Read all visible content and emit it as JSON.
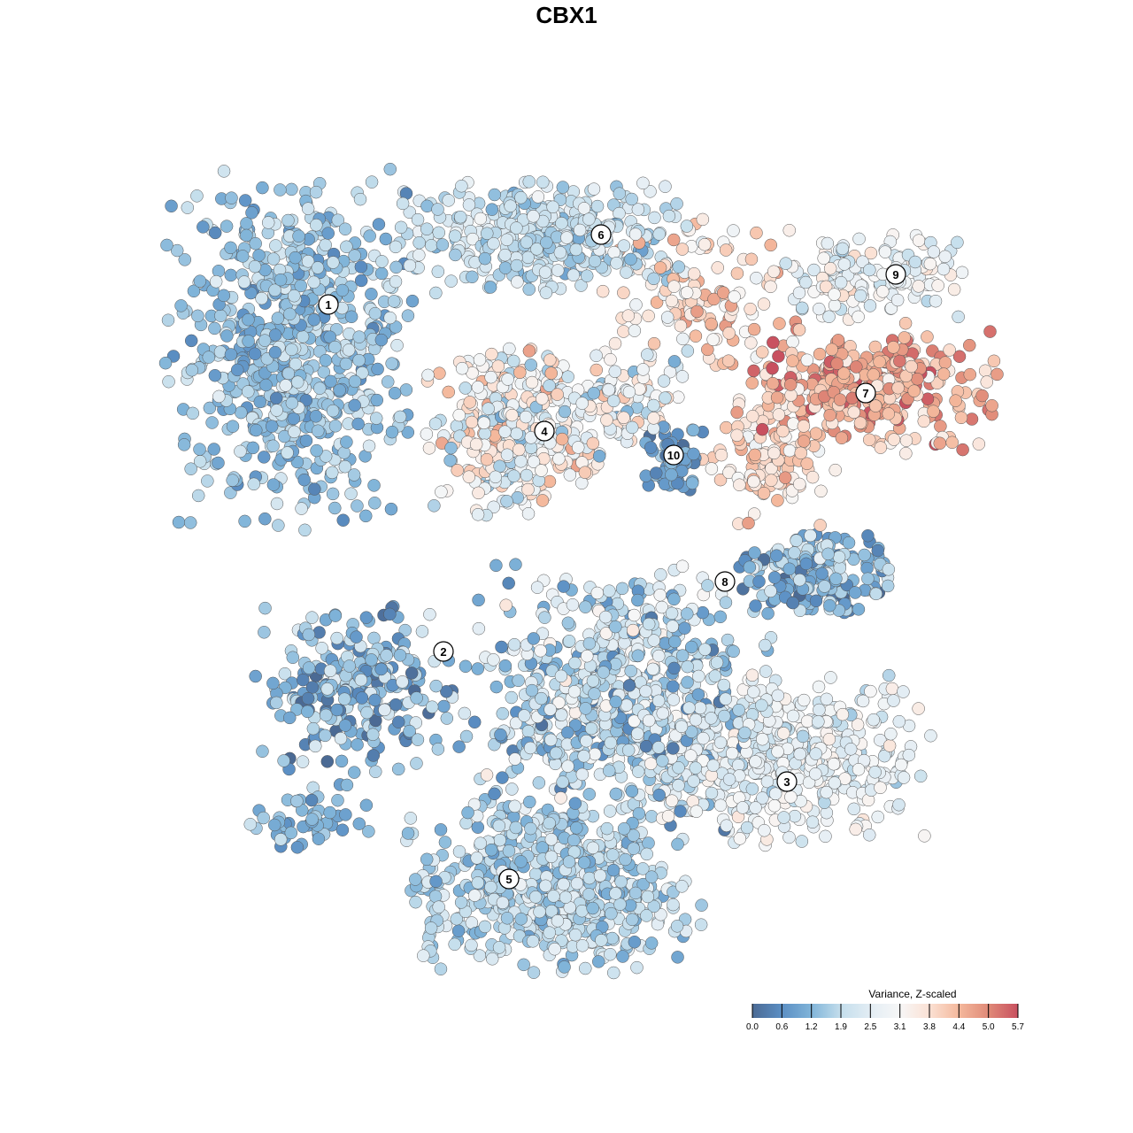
{
  "chart_data": {
    "type": "scatter",
    "title": "CBX1",
    "xlabel": "",
    "ylabel": "",
    "xlim": [
      -64,
      64
    ],
    "ylim": [
      -64,
      64
    ],
    "grid": false,
    "point_generation": "approximate clusters; points sampled around centers (data units)",
    "clusters": [
      {
        "label": "1",
        "center": [
          -31,
          25
        ],
        "spread": [
          6.5,
          9.5
        ],
        "n": 700,
        "mean_value": 1.5,
        "sd_value": 0.5,
        "label_pos": [
          -26.9,
          29.6
        ]
      },
      {
        "label": "6",
        "center": [
          -2,
          37.5
        ],
        "spread": [
          8,
          3
        ],
        "n": 350,
        "mean_value": 2.0,
        "sd_value": 0.5,
        "label_pos": [
          3.9,
          37.5
        ]
      },
      {
        "label": "",
        "center": [
          15,
          31
        ],
        "spread": [
          5,
          4
        ],
        "n": 120,
        "mean_value": 3.8,
        "sd_value": 0.6
      },
      {
        "label": "9",
        "center": [
          35,
          33
        ],
        "spread": [
          5,
          2.5
        ],
        "n": 150,
        "mean_value": 2.8,
        "sd_value": 0.6,
        "label_pos": [
          37.2,
          33
        ]
      },
      {
        "label": "7",
        "center": [
          34,
          20
        ],
        "spread": [
          7,
          3.5
        ],
        "n": 350,
        "mean_value": 4.5,
        "sd_value": 0.7,
        "label_pos": [
          33.8,
          19.6
        ]
      },
      {
        "label": "",
        "center": [
          23,
          12
        ],
        "spread": [
          3.5,
          3.5
        ],
        "n": 120,
        "mean_value": 3.9,
        "sd_value": 0.5
      },
      {
        "label": "4",
        "center": [
          -6,
          15
        ],
        "spread": [
          4.5,
          4.5
        ],
        "n": 350,
        "mean_value": 3.0,
        "sd_value": 0.9,
        "label_pos": [
          -2.5,
          15.3
        ]
      },
      {
        "label": "",
        "center": [
          6,
          19
        ],
        "spread": [
          4,
          3
        ],
        "n": 100,
        "mean_value": 2.8,
        "sd_value": 0.8
      },
      {
        "label": "10",
        "center": [
          12.2,
          12
        ],
        "spread": [
          1.5,
          2
        ],
        "n": 60,
        "mean_value": 0.9,
        "sd_value": 0.4,
        "label_pos": [
          12.1,
          12.6
        ]
      },
      {
        "label": "8",
        "center": [
          28,
          -1
        ],
        "spread": [
          4,
          2.2
        ],
        "n": 200,
        "mean_value": 1.3,
        "sd_value": 0.7,
        "label_pos": [
          17.9,
          -1.7
        ]
      },
      {
        "label": "2",
        "center": [
          -24,
          -14
        ],
        "spread": [
          5.5,
          4.5
        ],
        "n": 250,
        "mean_value": 1.2,
        "sd_value": 0.7,
        "label_pos": [
          -13.9,
          -9.6
        ]
      },
      {
        "label": "",
        "center": [
          6,
          -15
        ],
        "spread": [
          8,
          7
        ],
        "n": 700,
        "mean_value": 1.9,
        "sd_value": 0.8
      },
      {
        "label": "3",
        "center": [
          25,
          -22
        ],
        "spread": [
          8,
          4.5
        ],
        "n": 450,
        "mean_value": 2.6,
        "sd_value": 0.5,
        "label_pos": [
          24.9,
          -24.3
        ]
      },
      {
        "label": "5",
        "center": [
          -2,
          -36
        ],
        "spread": [
          8,
          4.5
        ],
        "n": 600,
        "mean_value": 1.8,
        "sd_value": 0.5,
        "label_pos": [
          -6.5,
          -35.3
        ]
      },
      {
        "label": "",
        "center": [
          -29,
          -28.5
        ],
        "spread": [
          3.5,
          2
        ],
        "n": 50,
        "mean_value": 1.3,
        "sd_value": 0.4
      }
    ],
    "legend": {
      "title": "Variance, Z-scaled",
      "placement": "bottom-right",
      "range": [
        0,
        5.7
      ],
      "ticks": [
        "0.0",
        "0.6",
        "1.2",
        "1.9",
        "2.5",
        "3.1",
        "3.8",
        "4.4",
        "5.0",
        "5.7"
      ],
      "tick_values": [
        0.0,
        0.633,
        1.267,
        1.9,
        2.533,
        3.167,
        3.8,
        4.433,
        5.067,
        5.7
      ],
      "colors": [
        "#4b6a94",
        "#5b8fc4",
        "#80b4d9",
        "#c4deec",
        "#e3edf4",
        "#f7f7f7",
        "#fbe1d4",
        "#f4b89c",
        "#e08a78",
        "#c8505f"
      ]
    }
  }
}
